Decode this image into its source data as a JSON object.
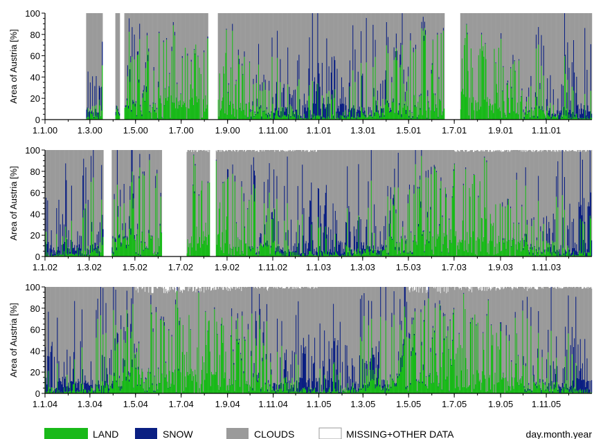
{
  "colors": {
    "land": "#19b919",
    "snow": "#0a1f82",
    "clouds": "#9a9a9a",
    "missing": "#ffffff"
  },
  "legend": {
    "land": "LAND",
    "snow": "SNOW",
    "clouds": "CLOUDS",
    "missing": "MISSING+OTHER DATA",
    "axis_note": "day.month.year"
  },
  "chart_data": [
    {
      "type": "area",
      "subtype": "stacked daily percentages",
      "ylabel": "Area of Austria [%]",
      "xlabel": "day.month.year",
      "ylim": [
        0,
        100
      ],
      "yticks": [
        0,
        20,
        40,
        60,
        80,
        100
      ],
      "x_range": [
        "2000-01-01",
        "2001-12-31"
      ],
      "x_tick_labels": [
        "1.1.00",
        "1.3.00",
        "1.5.00",
        "1.7.00",
        "1.9.00",
        "1.11.00",
        "1.1.01",
        "1.3.01",
        "1.5.01",
        "1.7.01",
        "1.9.01",
        "1.11.01"
      ],
      "x_tick_dates": [
        "2000-01-01",
        "2000-03-01",
        "2000-05-01",
        "2000-07-01",
        "2000-09-01",
        "2000-11-01",
        "2001-01-01",
        "2001-03-01",
        "2001-05-01",
        "2001-07-01",
        "2001-09-01",
        "2001-11-01"
      ],
      "no_data_periods": [
        [
          "2000-01-01",
          "2000-02-24"
        ],
        [
          "2000-03-18",
          "2000-04-03"
        ],
        [
          "2000-04-10",
          "2000-04-15"
        ],
        [
          "2000-08-06",
          "2000-08-18"
        ],
        [
          "2001-06-18",
          "2001-07-08"
        ]
      ],
      "series": [
        {
          "name": "LAND",
          "monthly_typical": [
            3,
            6,
            12,
            30,
            40,
            42,
            40,
            36,
            30,
            18,
            8,
            3
          ],
          "monthly_peak": [
            30,
            55,
            75,
            85,
            95,
            97,
            97,
            95,
            85,
            75,
            60,
            40
          ]
        },
        {
          "name": "SNOW",
          "monthly_typical": [
            25,
            22,
            15,
            7,
            3,
            1,
            0,
            0,
            1,
            5,
            15,
            25
          ],
          "monthly_peak": [
            60,
            55,
            45,
            35,
            15,
            5,
            2,
            2,
            10,
            30,
            55,
            75
          ]
        },
        {
          "name": "CLOUDS",
          "monthly_typical": [
            70,
            70,
            72,
            62,
            56,
            56,
            58,
            62,
            68,
            76,
            76,
            72
          ]
        },
        {
          "name": "MISSING+OTHER DATA",
          "monthly_typical": [
            0,
            0,
            0,
            0,
            0,
            0,
            0,
            0,
            0,
            0,
            0,
            0
          ]
        }
      ]
    },
    {
      "type": "area",
      "subtype": "stacked daily percentages",
      "ylabel": "Area of Austria [%]",
      "xlabel": "day.month.year",
      "ylim": [
        0,
        100
      ],
      "yticks": [
        0,
        20,
        40,
        60,
        80,
        100
      ],
      "x_range": [
        "2002-01-01",
        "2003-12-31"
      ],
      "x_tick_labels": [
        "1.1.02",
        "1.3.02",
        "1.5.02",
        "1.7.02",
        "1.9.02",
        "1.11.02",
        "1.1.03",
        "1.3.03",
        "1.5.03",
        "1.7.03",
        "1.9.03",
        "1.11.03"
      ],
      "x_tick_dates": [
        "2002-01-01",
        "2002-03-01",
        "2002-05-01",
        "2002-07-01",
        "2002-09-01",
        "2002-11-01",
        "2003-01-01",
        "2003-03-01",
        "2003-05-01",
        "2003-07-01",
        "2003-09-01",
        "2003-11-01"
      ],
      "no_data_periods": [
        [
          "2002-03-20",
          "2002-03-30"
        ],
        [
          "2002-06-06",
          "2002-07-08"
        ],
        [
          "2002-08-09",
          "2002-08-16"
        ]
      ],
      "series": [
        {
          "name": "LAND",
          "monthly_typical": [
            3,
            6,
            12,
            30,
            40,
            42,
            40,
            36,
            30,
            18,
            8,
            3
          ],
          "monthly_peak": [
            30,
            55,
            75,
            85,
            95,
            97,
            97,
            95,
            85,
            75,
            60,
            40
          ]
        },
        {
          "name": "SNOW",
          "monthly_typical": [
            25,
            22,
            15,
            7,
            3,
            1,
            0,
            0,
            1,
            5,
            15,
            25
          ],
          "monthly_peak": [
            60,
            55,
            45,
            35,
            15,
            5,
            2,
            2,
            10,
            30,
            55,
            75
          ]
        },
        {
          "name": "CLOUDS",
          "monthly_typical": [
            70,
            70,
            72,
            62,
            56,
            56,
            58,
            62,
            68,
            76,
            76,
            72
          ]
        },
        {
          "name": "MISSING+OTHER DATA",
          "monthly_typical": [
            0,
            0,
            0,
            0,
            0,
            0,
            1,
            1,
            1,
            1,
            1,
            1
          ]
        }
      ]
    },
    {
      "type": "area",
      "subtype": "stacked daily percentages",
      "ylabel": "Area of Austria [%]",
      "xlabel": "day.month.year",
      "ylim": [
        0,
        100
      ],
      "yticks": [
        0,
        20,
        40,
        60,
        80,
        100
      ],
      "x_range": [
        "2004-01-01",
        "2005-12-31"
      ],
      "x_tick_labels": [
        "1.1.04",
        "1.3.04",
        "1.5.04",
        "1.7.04",
        "1.9.04",
        "1.11.04",
        "1.1.05",
        "1.3.05",
        "1.5.05",
        "1.7.05",
        "1.9.05",
        "1.11.05"
      ],
      "x_tick_dates": [
        "2004-01-01",
        "2004-03-01",
        "2004-05-01",
        "2004-07-01",
        "2004-09-01",
        "2004-11-01",
        "2005-01-01",
        "2005-03-01",
        "2005-05-01",
        "2005-07-01",
        "2005-09-01",
        "2005-11-01"
      ],
      "no_data_periods": [],
      "series": [
        {
          "name": "LAND",
          "monthly_typical": [
            3,
            6,
            12,
            30,
            40,
            42,
            40,
            36,
            30,
            18,
            8,
            3
          ],
          "monthly_peak": [
            30,
            55,
            75,
            85,
            95,
            97,
            97,
            95,
            85,
            75,
            60,
            40
          ]
        },
        {
          "name": "SNOW",
          "monthly_typical": [
            25,
            22,
            15,
            7,
            3,
            1,
            0,
            0,
            1,
            5,
            15,
            25
          ],
          "monthly_peak": [
            60,
            55,
            45,
            35,
            15,
            5,
            2,
            2,
            10,
            30,
            55,
            75
          ]
        },
        {
          "name": "CLOUDS",
          "monthly_typical": [
            70,
            70,
            72,
            62,
            56,
            56,
            58,
            62,
            68,
            76,
            76,
            72
          ]
        },
        {
          "name": "MISSING+OTHER DATA",
          "monthly_typical": [
            0,
            0,
            0,
            0,
            3,
            3,
            3,
            2,
            2,
            2,
            1,
            1
          ]
        }
      ]
    }
  ]
}
